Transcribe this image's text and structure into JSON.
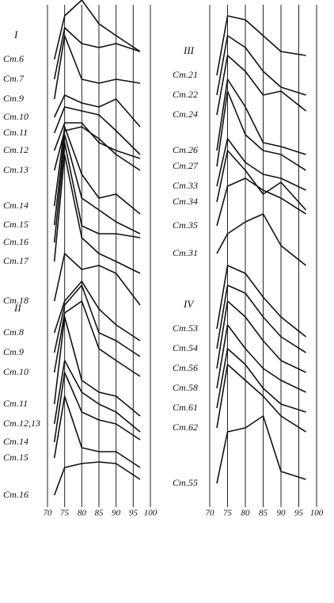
{
  "chart_data": [
    {
      "type": "line",
      "xlim": [
        70,
        100
      ],
      "xticks": [
        70,
        75,
        80,
        85,
        90,
        95,
        100
      ],
      "ylim": [
        0,
        640
      ],
      "grid": true,
      "color": "#111111",
      "x": [
        72,
        75,
        80,
        85,
        90,
        97
      ],
      "groups": [
        {
          "label": "I",
          "series": [
            {
              "name": "Ст.6",
              "values": [
                565,
                620,
                640,
                610,
                595,
                575
              ]
            },
            {
              "name": "Ст.7",
              "values": [
                540,
                605,
                585,
                580,
                585,
                575
              ]
            },
            {
              "name": "Ст.9",
              "values": [
                515,
                595,
                540,
                535,
                540,
                535
              ]
            },
            {
              "name": "Ст.10",
              "values": [
                492,
                520,
                510,
                505,
                515,
                480
              ]
            },
            {
              "name": "Ст.11",
              "values": [
                472,
                505,
                500,
                495,
                475,
                445
              ]
            },
            {
              "name": "Ст.12",
              "values": [
                450,
                485,
                485,
                460,
                450,
                440
              ]
            },
            {
              "name": "Ст.13",
              "values": [
                425,
                475,
                480,
                465,
                445,
                425
              ]
            },
            {
              "name": "Ст.14",
              "values": [
                380,
                480,
                420,
                390,
                395,
                370
              ]
            },
            {
              "name": "Ст.15",
              "values": [
                356,
                470,
                390,
                375,
                360,
                345
              ]
            },
            {
              "name": "Ст.16",
              "values": [
                334,
                460,
                355,
                345,
                345,
                340
              ]
            },
            {
              "name": "Ст.17",
              "values": [
                310,
                445,
                340,
                320,
                310,
                295
              ]
            },
            {
              "name": "Ст.18",
              "values": [
                260,
                320,
                300,
                305,
                295,
                255
              ]
            }
          ]
        },
        {
          "label": "II",
          "series": [
            {
              "name": "Ст.8",
              "values": [
                220,
                260,
                285,
                250,
                230,
                210
              ]
            },
            {
              "name": "Ст.9",
              "values": [
                195,
                255,
                280,
                220,
                210,
                190
              ]
            },
            {
              "name": "Ст.10",
              "values": [
                170,
                245,
                260,
                200,
                185,
                165
              ]
            },
            {
              "name": "Ст.11",
              "values": [
                130,
                240,
                160,
                145,
                140,
                115
              ]
            },
            {
              "name": "Ст.12,13",
              "values": [
                105,
                185,
                145,
                130,
                120,
                95
              ]
            },
            {
              "name": "Ст.14",
              "values": [
                82,
                170,
                120,
                110,
                105,
                85
              ]
            },
            {
              "name": "Ст.15",
              "values": [
                62,
                140,
                75,
                70,
                70,
                50
              ]
            },
            {
              "name": "Ст.16",
              "values": [
                15,
                50,
                55,
                57,
                55,
                35
              ]
            }
          ]
        }
      ]
    },
    {
      "type": "line",
      "xlim": [
        70,
        100
      ],
      "xticks": [
        70,
        75,
        80,
        85,
        90,
        95,
        100
      ],
      "ylim": [
        0,
        640
      ],
      "grid": true,
      "color": "#111111",
      "x": [
        72,
        75,
        80,
        85,
        90,
        97
      ],
      "groups": [
        {
          "label": "III",
          "series": [
            {
              "name": "Ст.21",
              "values": [
                545,
                620,
                615,
                595,
                575,
                570
              ]
            },
            {
              "name": "Ст.22",
              "values": [
                520,
                595,
                580,
                550,
                530,
                520
              ]
            },
            {
              "name": "Ст.24",
              "values": [
                495,
                570,
                550,
                520,
                525,
                500
              ]
            },
            {
              "name": "Ст.26",
              "values": [
                450,
                540,
                505,
                460,
                455,
                445
              ]
            },
            {
              "name": "Ст.27",
              "values": [
                430,
                525,
                470,
                450,
                445,
                425
              ]
            },
            {
              "name": "Ст.33",
              "values": [
                405,
                465,
                435,
                420,
                415,
                400
              ]
            },
            {
              "name": "Ст.34",
              "values": [
                385,
                450,
                425,
                395,
                410,
                375
              ]
            },
            {
              "name": "Ст.35",
              "values": [
                355,
                405,
                415,
                400,
                390,
                370
              ]
            },
            {
              "name": "Ст.31",
              "values": [
                320,
                345,
                360,
                370,
                330,
                305
              ]
            }
          ]
        },
        {
          "label": "IV",
          "series": [
            {
              "name": "Ст.53",
              "values": [
                225,
                305,
                295,
                265,
                240,
                215
              ]
            },
            {
              "name": "Ст.54",
              "values": [
                200,
                280,
                270,
                240,
                215,
                195
              ]
            },
            {
              "name": "Ст.56",
              "values": [
                175,
                260,
                240,
                210,
                185,
                170
              ]
            },
            {
              "name": "Ст.58",
              "values": [
                150,
                230,
                200,
                175,
                160,
                145
              ]
            },
            {
              "name": "Ст.61",
              "values": [
                125,
                200,
                180,
                150,
                130,
                120
              ]
            },
            {
              "name": "Ст.62",
              "values": [
                100,
                180,
                160,
                140,
                115,
                95
              ]
            },
            {
              "name": "Ст.55",
              "values": [
                30,
                95,
                100,
                115,
                45,
                35
              ]
            }
          ]
        }
      ]
    }
  ]
}
